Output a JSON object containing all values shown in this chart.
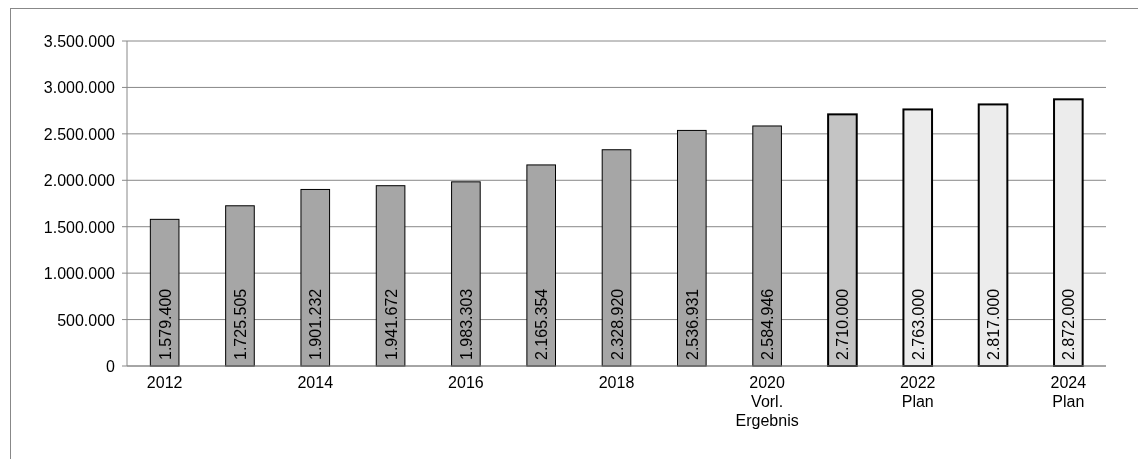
{
  "chart_data": {
    "type": "bar",
    "categories": [
      "2012",
      null,
      "2014",
      null,
      "2016",
      null,
      "2018",
      null,
      "2020\nVorl.\nErgebnis",
      null,
      "2022\nPlan",
      null,
      "2024\nPlan"
    ],
    "values": [
      1579400,
      1725505,
      1901232,
      1941672,
      1983303,
      2165354,
      2328920,
      2536931,
      2584946,
      2710000,
      2763000,
      2817000,
      2872000
    ],
    "value_labels": [
      "1.579.400",
      "1.725.505",
      "1.901.232",
      "1.941.672",
      "1.983.303",
      "2.165.354",
      "2.328.920",
      "2.536.931",
      "2.584.946",
      "2.710.000",
      "2.763.000",
      "2.817.000",
      "2.872.000"
    ],
    "colors": [
      "#a6a6a6",
      "#a6a6a6",
      "#a6a6a6",
      "#a6a6a6",
      "#a6a6a6",
      "#a6a6a6",
      "#a6a6a6",
      "#a6a6a6",
      "#a6a6a6",
      "#c4c4c4",
      "#ececec",
      "#ececec",
      "#ececec"
    ],
    "ylim": [
      0,
      3500000
    ],
    "yticks": [
      0,
      {
        "value": 500000,
        "label": "500.000"
      },
      {
        "value": 1000000,
        "label": "1.000.000"
      },
      {
        "value": 1500000,
        "label": "1.500.000"
      },
      {
        "value": 2000000,
        "label": "2.000.000"
      },
      {
        "value": 2500000,
        "label": "2.500.000"
      },
      {
        "value": 3000000,
        "label": "3.000.000"
      },
      {
        "value": 3500000,
        "label": "3.500.000"
      }
    ],
    "grid": "y"
  }
}
